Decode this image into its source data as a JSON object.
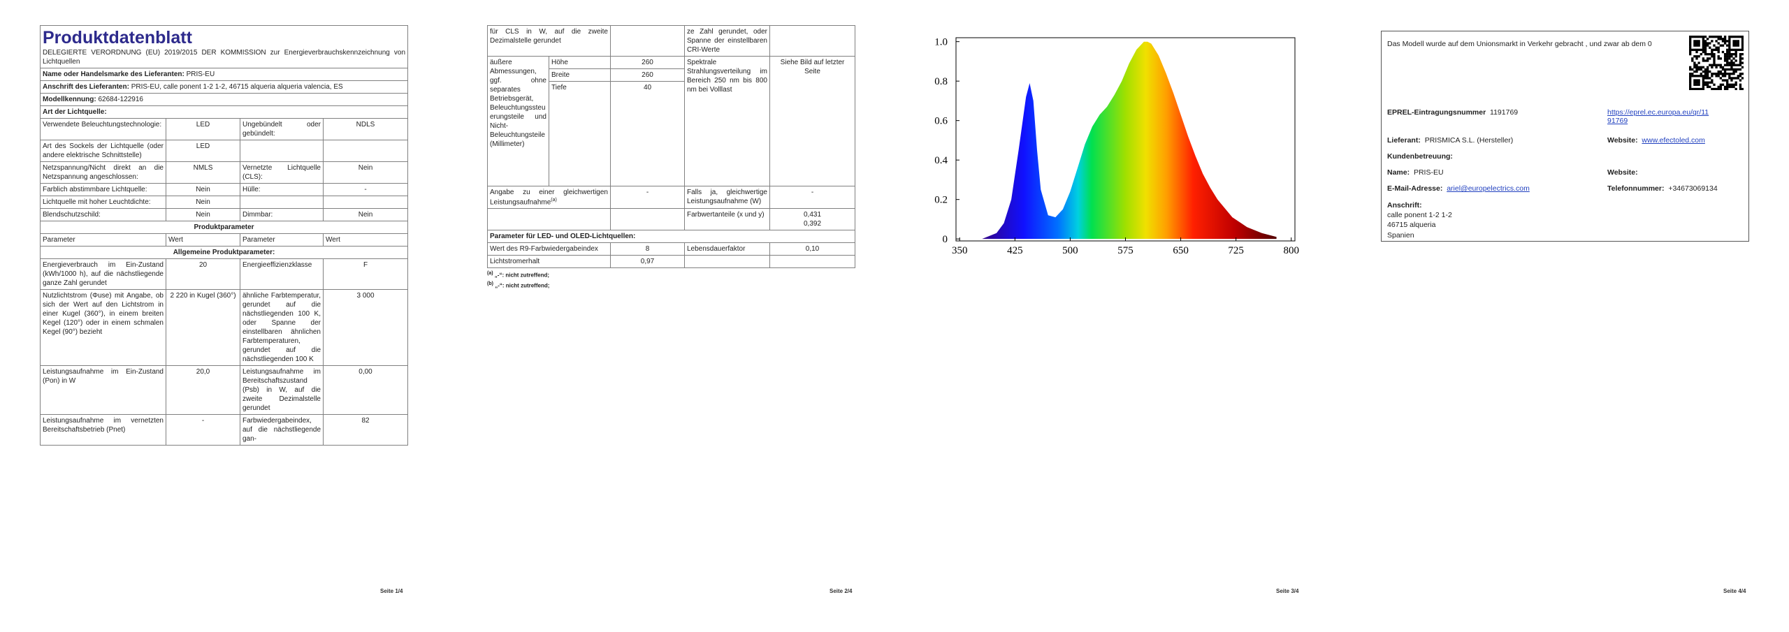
{
  "pages": [
    {
      "title": "Produktdatenblatt",
      "regulation": "DELEGIERTE VERORDNUNG (EU) 2019/2015 DER KOMMISSION zur Energieverbrauchskennzeichnung von Lichtquellen",
      "supplier": {
        "label": "Name oder Handelsmarke des Lieferanten:",
        "value": "PRIS-EU"
      },
      "address": {
        "label": "Anschrift des Lieferanten:",
        "value": "PRIS-EU, calle ponent 1-2 1-2, 46715 alqueria alqueria valencia, ES"
      },
      "model": {
        "label": "Modellkennung:",
        "value": "62684-122916"
      },
      "section": "Art der Lichtquelle:",
      "rows": [
        [
          "Verwendete Beleuchtungstechnologie:",
          "LED",
          "Ungebündelt oder gebündelt:",
          "NDLS"
        ],
        [
          "Art des Sockels der Lichtquelle (oder andere elektrische Schnittstelle)",
          "LED"
        ],
        [
          "Netzspannung/Nicht direkt an die Netzspannung angeschlossen:",
          "NMLS",
          "Vernetzte Lichtquelle (CLS):",
          "Nein"
        ],
        [
          "Farblich abstimmbare Lichtquelle:",
          "Nein",
          "Hülle:",
          "-"
        ],
        [
          "Lichtquelle mit hoher Leuchtdichte:",
          "Nein"
        ],
        [
          "Blendschutzschild:",
          "Nein",
          "Dimmbar:",
          "Nein"
        ]
      ],
      "product_header": "Produktparameter",
      "columns": [
        "Parameter",
        "Wert",
        "Parameter",
        "Wert"
      ],
      "general": "Allgemeine Produktparameter:",
      "params": [
        [
          "Energieverbrauch im Ein-Zustand (kWh/1000 h), auf die nächstliegende ganze Zahl gerundet",
          "20",
          "Energieeffizienzklasse",
          "F"
        ],
        [
          "Nutzlichtstrom (Φuse) mit Angabe, ob sich der Wert auf den Lichtstrom in einer Kugel (360°), in einem breiten Kegel (120°) oder in einem schmalen Kegel (90°) bezieht",
          "2 220 in Kugel (360°)",
          "ähnliche Farbtemperatur, gerundet auf die nächstliegenden 100 K, oder Spanne der einstellbaren ähnlichen Farbtemperaturen, gerundet auf die nächstliegenden 100 K",
          "3 000"
        ],
        [
          "Leistungsaufnahme im Ein-Zustand (Pon) in W",
          "20,0",
          "Leistungsaufnahme im Bereitschaftszustand (Psb) in W, auf die zweite Dezimalstelle gerundet",
          "0,00"
        ],
        [
          "Leistungsaufnahme im vernetzten Bereitschaftsbetrieb (Pnet)",
          "-",
          "Farbwiedergabeindex, auf die nächstliegende gan-",
          "82"
        ]
      ],
      "footer": "Seite 1/4"
    },
    {
      "continuation": [
        "für CLS in W, auf die zweite Dezimalstelle gerundet",
        "ze Zahl gerundet, oder Spanne der einstellbaren CRI-Werte"
      ],
      "dimensions": {
        "label": "äußere Abmessungen, ggf. ohne separates Betriebsgerät, Beleuchtungssteuerungsteile und Nicht-Beleuchtungsteile (Millimeter)",
        "rows": [
          [
            "Höhe",
            "260"
          ],
          [
            "Breite",
            "260"
          ],
          [
            "Tiefe",
            "40"
          ]
        ],
        "param": "Spektrale Strahlungsverteilung im Bereich 250 nm bis 800 nm bei Volllast",
        "value": "Siehe Bild auf letzter Seite"
      },
      "rows": [
        [
          "Angabe zu einer gleichwertigen Leistungsaufnahme",
          "-",
          "Falls ja, gleichwertige Leistungsaufnahme (W)",
          "-"
        ],
        [
          "Farbwertanteile (x und y)",
          "0,431",
          "0,392"
        ]
      ],
      "led_header": "Parameter für LED- und OLED-Lichtquellen:",
      "led_rows": [
        [
          "Wert des R9-Farbwiedergabeindex",
          "8",
          "Lebensdauerfaktor",
          "0,10"
        ],
        [
          "Lichtstromerhalt",
          "0,97"
        ]
      ],
      "footnotes": [
        {
          "mark": "(a)",
          "text": "„-“: nicht zutreffend;"
        },
        {
          "mark": "(b)",
          "text": "„-“: nicht zutreffend;"
        }
      ],
      "footer": "Seite 2/4"
    },
    {
      "footer": "Seite 3/4"
    },
    {
      "intro": "Das Modell wurde auf dem Unionsmarkt in Verkehr gebracht , und zwar ab dem 0",
      "eprel": {
        "label": "EPREL-Eintragungsnummer",
        "value": "1191769",
        "link": "https://eprel.ec.europa.eu/qr/1191769"
      },
      "supplier": {
        "label": "Lieferant:",
        "value": "PRISMICA S.L. (Hersteller)"
      },
      "website": {
        "label": "Website:",
        "value": "www.efectoled.com"
      },
      "service": "Kundenbetreuung:",
      "name": {
        "label": "Name:",
        "value": "PRIS-EU"
      },
      "service_website": "Website:",
      "email": {
        "label": "E-Mail-Adresse:",
        "value": "ariel@europelectrics.com"
      },
      "phone": {
        "label": "Telefonnummer:",
        "value": "+34673069134"
      },
      "address": {
        "label": "Anschrift:",
        "lines": [
          "calle ponent 1-2 1-2",
          "46715 alqueria",
          "Spanien"
        ]
      },
      "footer": "Seite 4/4"
    }
  ],
  "chart_data": {
    "type": "area",
    "x": [
      380,
      400,
      410,
      420,
      430,
      440,
      445,
      450,
      455,
      460,
      470,
      480,
      490,
      500,
      510,
      520,
      530,
      540,
      550,
      560,
      570,
      580,
      590,
      600,
      605,
      610,
      620,
      630,
      640,
      650,
      660,
      670,
      680,
      690,
      700,
      720,
      740,
      760,
      780
    ],
    "values": [
      0,
      0.03,
      0.08,
      0.2,
      0.45,
      0.72,
      0.79,
      0.7,
      0.45,
      0.25,
      0.12,
      0.11,
      0.15,
      0.24,
      0.36,
      0.48,
      0.57,
      0.63,
      0.67,
      0.73,
      0.8,
      0.89,
      0.96,
      1.0,
      1.0,
      0.99,
      0.93,
      0.84,
      0.74,
      0.63,
      0.52,
      0.42,
      0.33,
      0.26,
      0.2,
      0.11,
      0.06,
      0.03,
      0.01
    ],
    "xlim": [
      345,
      805
    ],
    "ylim": [
      -0.01,
      1.02
    ],
    "xticks": [
      350,
      425,
      500,
      575,
      650,
      725,
      800
    ],
    "yticks": [
      0,
      0.2,
      0.4,
      0.6,
      0.8,
      {
        "value": 1,
        "label": "1.0"
      }
    ]
  }
}
